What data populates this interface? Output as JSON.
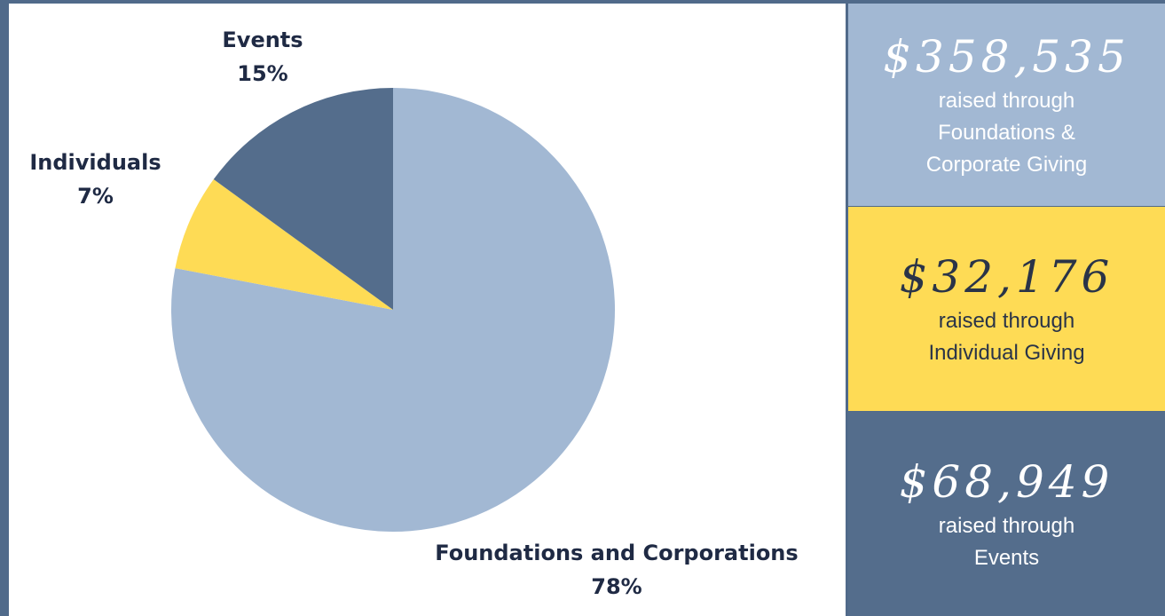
{
  "chart_data": {
    "type": "pie",
    "slices": [
      {
        "label": "Foundations and Corporations",
        "value": 78,
        "display": "78%",
        "color": "#a2b8d3"
      },
      {
        "label": "Individuals",
        "value": 7,
        "display": "7%",
        "color": "#fedb55"
      },
      {
        "label": "Events",
        "value": 15,
        "display": "15%",
        "color": "#546d8c"
      }
    ],
    "start": "12 o'clock",
    "direction": "clockwise",
    "legend": "none"
  },
  "labels": {
    "events": {
      "name": "Events",
      "pct": "15%"
    },
    "individuals": {
      "name": "Individuals",
      "pct": "7%"
    },
    "foundations": {
      "name": "Foundations and Corporations",
      "pct": "78%"
    }
  },
  "panels": [
    {
      "amount": "$358,535",
      "line1": "raised through",
      "line2": "Foundations &",
      "line3": "Corporate Giving",
      "bg": "#a2b8d3",
      "text_color": "#ffffff"
    },
    {
      "amount": "$32,176",
      "line1": "raised through",
      "line2": "Individual Giving",
      "bg": "#fedb55",
      "text_color": "#2a3448"
    },
    {
      "amount": "$68,949",
      "line1": "raised through",
      "line2": "Events",
      "bg": "#546d8c",
      "text_color": "#ffffff"
    }
  ],
  "colors": {
    "background": "#506a8a",
    "label_text": "#1f2a44"
  }
}
